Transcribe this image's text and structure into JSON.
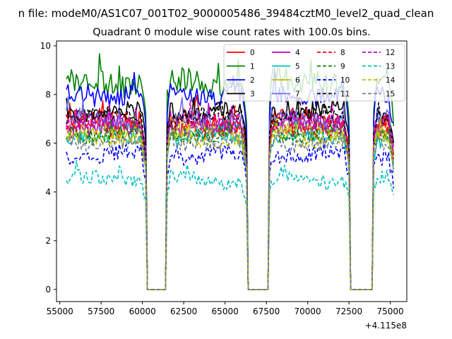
{
  "figure": {
    "suptitle": "n file: modeM0/AS1C07_001T02_9000005486_39484cztM0_level2_quad_clean"
  },
  "chart_data": {
    "type": "line",
    "title": "Quadrant 0 module wise count rates with 100.0s bins.",
    "xlabel": "",
    "ylabel": "",
    "x_offset_label": "+4.115e8",
    "xlim": [
      54800,
      76000
    ],
    "ylim": [
      -0.5,
      10.2
    ],
    "x_ticks": [
      55000,
      57500,
      60000,
      62500,
      65000,
      67500,
      70000,
      72500,
      75000
    ],
    "x_tick_labels": [
      "55000",
      "57500",
      "60000",
      "62500",
      "65000",
      "67500",
      "70000",
      "72500",
      "75000"
    ],
    "y_ticks": [
      0,
      2,
      4,
      6,
      8,
      10
    ],
    "y_tick_labels": [
      "0",
      "2",
      "4",
      "6",
      "8",
      "10"
    ],
    "bin_width_s": 100,
    "grid": false,
    "legend": {
      "placement": "top-right",
      "columns": 4
    },
    "observation_segments": [
      [
        55400,
        60200
      ],
      [
        61500,
        66300
      ],
      [
        67700,
        72500
      ],
      [
        74000,
        75200
      ]
    ],
    "series": [
      {
        "name": "0",
        "color": "#ff0000",
        "dash": "solid",
        "level": 6.9,
        "amplitude": 0.4
      },
      {
        "name": "1",
        "color": "#008000",
        "dash": "solid",
        "level": 8.5,
        "amplitude": 0.5
      },
      {
        "name": "2",
        "color": "#0000ff",
        "dash": "solid",
        "level": 8.0,
        "amplitude": 0.4
      },
      {
        "name": "3",
        "color": "#000000",
        "dash": "solid",
        "level": 7.3,
        "amplitude": 0.3
      },
      {
        "name": "4",
        "color": "#bf00bf",
        "dash": "solid",
        "level": 6.7,
        "amplitude": 0.35
      },
      {
        "name": "5",
        "color": "#00bfbf",
        "dash": "solid",
        "level": 6.2,
        "amplitude": 0.3
      },
      {
        "name": "6",
        "color": "#bfbf00",
        "dash": "solid",
        "level": 6.4,
        "amplitude": 0.35
      },
      {
        "name": "7",
        "color": "#7070e0",
        "dash": "solid",
        "level": 6.9,
        "amplitude": 0.4
      },
      {
        "name": "8",
        "color": "#ff0000",
        "dash": "dashed",
        "level": 6.7,
        "amplitude": 0.35
      },
      {
        "name": "9",
        "color": "#008000",
        "dash": "dashed",
        "level": 6.4,
        "amplitude": 0.35
      },
      {
        "name": "10",
        "color": "#0000ff",
        "dash": "dashed",
        "level": 5.5,
        "amplitude": 0.3
      },
      {
        "name": "11",
        "color": "#000000",
        "dash": "dashed",
        "level": 7.1,
        "amplitude": 0.3
      },
      {
        "name": "12",
        "color": "#bf00bf",
        "dash": "dashed",
        "level": 6.8,
        "amplitude": 0.35
      },
      {
        "name": "13",
        "color": "#00bfbf",
        "dash": "dashed",
        "level": 4.5,
        "amplitude": 0.3
      },
      {
        "name": "14",
        "color": "#bfbf00",
        "dash": "dashed",
        "level": 6.2,
        "amplitude": 0.3
      },
      {
        "name": "15",
        "color": "#708090",
        "dash": "dashed",
        "level": 6.0,
        "amplitude": 0.3
      }
    ]
  }
}
